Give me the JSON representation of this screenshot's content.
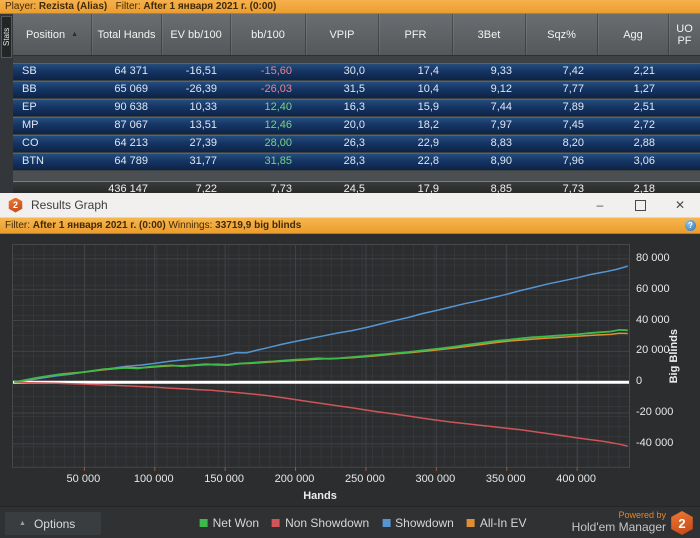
{
  "stats_window": {
    "toolbar": {
      "player_label": "Player:",
      "player_value": "Rezista (Alias)",
      "filter_label": "Filter:",
      "filter_value": "After 1 января 2021 г. (0:00)"
    },
    "side_tab": "Stats",
    "table": {
      "columns": [
        "Position",
        "Total Hands",
        "EV bb/100",
        "bb/100",
        "VPIP",
        "PFR",
        "3Bet",
        "Sqz%",
        "Agg",
        "UO PF"
      ],
      "sort_icon": "▲",
      "rows": [
        {
          "position": "SB",
          "values": [
            "64 371",
            "-16,51",
            "-15,60",
            "30,0",
            "17,4",
            "9,33",
            "7,42",
            "2,21"
          ]
        },
        {
          "position": "BB",
          "values": [
            "65 069",
            "-26,39",
            "-26,03",
            "31,5",
            "10,4",
            "9,12",
            "7,77",
            "1,27"
          ]
        },
        {
          "position": "EP",
          "values": [
            "90 638",
            "10,33",
            "12,40",
            "16,3",
            "15,9",
            "7,44",
            "7,89",
            "2,51"
          ]
        },
        {
          "position": "MP",
          "values": [
            "87 067",
            "13,51",
            "12,46",
            "20,0",
            "18,2",
            "7,97",
            "7,45",
            "2,72"
          ]
        },
        {
          "position": "CO",
          "values": [
            "64 213",
            "27,39",
            "28,00",
            "26,3",
            "22,9",
            "8,83",
            "8,20",
            "2,88"
          ]
        },
        {
          "position": "BTN",
          "values": [
            "64 789",
            "31,77",
            "31,85",
            "28,3",
            "22,8",
            "8,90",
            "7,96",
            "3,06"
          ]
        }
      ],
      "total_values": [
        "436 147",
        "7,22",
        "7,73",
        "24,5",
        "17,9",
        "8,85",
        "7,73",
        "2,18"
      ]
    }
  },
  "graph_window": {
    "icon_label": "2",
    "title": "Results Graph",
    "minimize_glyph": "–",
    "close_glyph": "✕",
    "filterbar": {
      "filter_label": "Filter:",
      "filter_value": "After 1 января 2021 г. (0:00)",
      "winnings_label": "Winnings:",
      "winnings_value": "33719,9 big blinds",
      "info_glyph": "?"
    },
    "options_label": "Options",
    "options_chevron": "▲",
    "powered_by_line1": "Powered by",
    "powered_by_line2": "Hold'em Manager",
    "powered_badge": "2"
  },
  "chart_data": {
    "type": "line",
    "xlabel": "Hands",
    "ylabel": "Big Blinds",
    "x_range": [
      0,
      436147
    ],
    "y_range": [
      -55000,
      89000
    ],
    "grid": true,
    "legend_position": "bottom",
    "zero_line_color": "#ffffff",
    "x_ticks": [
      {
        "v": 50000,
        "label": "50 000"
      },
      {
        "v": 100000,
        "label": "100 000"
      },
      {
        "v": 150000,
        "label": "150 000"
      },
      {
        "v": 200000,
        "label": "200 000"
      },
      {
        "v": 250000,
        "label": "250 000"
      },
      {
        "v": 300000,
        "label": "300 000"
      },
      {
        "v": 350000,
        "label": "350 000"
      },
      {
        "v": 400000,
        "label": "400 000"
      }
    ],
    "y_ticks": [
      {
        "v": 80000,
        "label": "80 000"
      },
      {
        "v": 60000,
        "label": "60 000"
      },
      {
        "v": 40000,
        "label": "40 000"
      },
      {
        "v": 20000,
        "label": "20 000"
      },
      {
        "v": 0,
        "label": "0"
      },
      {
        "v": -20000,
        "label": "-20 000"
      },
      {
        "v": -40000,
        "label": "-40 000"
      }
    ],
    "points_scale": 1000,
    "series": [
      {
        "name": "Net Won",
        "color": "#3dbb4a",
        "points": [
          [
            0,
            0
          ],
          [
            8,
            1.4
          ],
          [
            16,
            2.8
          ],
          [
            24,
            4.0
          ],
          [
            32,
            5.0
          ],
          [
            40,
            5.6
          ],
          [
            48,
            6.3
          ],
          [
            56,
            7.4
          ],
          [
            64,
            8.5
          ],
          [
            72,
            8.9
          ],
          [
            80,
            9.3
          ],
          [
            88,
            8.9
          ],
          [
            96,
            9.9
          ],
          [
            104,
            10.6
          ],
          [
            112,
            10.9
          ],
          [
            120,
            10.3
          ],
          [
            128,
            11.0
          ],
          [
            136,
            11.7
          ],
          [
            144,
            11.3
          ],
          [
            152,
            11.1
          ],
          [
            160,
            12.0
          ],
          [
            168,
            12.5
          ],
          [
            176,
            13.1
          ],
          [
            184,
            13.5
          ],
          [
            192,
            14.1
          ],
          [
            200,
            14.6
          ],
          [
            208,
            15.0
          ],
          [
            216,
            15.5
          ],
          [
            224,
            15.2
          ],
          [
            232,
            15.6
          ],
          [
            240,
            16.2
          ],
          [
            248,
            16.9
          ],
          [
            256,
            17.5
          ],
          [
            264,
            18.2
          ],
          [
            272,
            18.9
          ],
          [
            280,
            19.5
          ],
          [
            288,
            20.4
          ],
          [
            296,
            21.2
          ],
          [
            304,
            22.0
          ],
          [
            312,
            22.9
          ],
          [
            320,
            24.0
          ],
          [
            328,
            25.0
          ],
          [
            336,
            26.0
          ],
          [
            344,
            26.9
          ],
          [
            352,
            27.6
          ],
          [
            360,
            28.4
          ],
          [
            368,
            29.1
          ],
          [
            376,
            29.6
          ],
          [
            384,
            30.1
          ],
          [
            392,
            30.6
          ],
          [
            400,
            31.0
          ],
          [
            408,
            31.8
          ],
          [
            416,
            32.4
          ],
          [
            424,
            32.9
          ],
          [
            430,
            33.9
          ],
          [
            436,
            33.7
          ]
        ]
      },
      {
        "name": "Non Showdown",
        "color": "#d05458",
        "points": [
          [
            0,
            0
          ],
          [
            10,
            -0.3
          ],
          [
            20,
            -0.5
          ],
          [
            30,
            -0.7
          ],
          [
            40,
            -1.0
          ],
          [
            50,
            -1.2
          ],
          [
            60,
            -1.6
          ],
          [
            70,
            -2.0
          ],
          [
            80,
            -2.4
          ],
          [
            90,
            -2.8
          ],
          [
            100,
            -3.2
          ],
          [
            110,
            -3.8
          ],
          [
            120,
            -4.3
          ],
          [
            130,
            -4.8
          ],
          [
            140,
            -5.2
          ],
          [
            150,
            -6.0
          ],
          [
            160,
            -6.8
          ],
          [
            170,
            -7.7
          ],
          [
            180,
            -8.7
          ],
          [
            190,
            -9.9
          ],
          [
            200,
            -11.3
          ],
          [
            210,
            -12.7
          ],
          [
            220,
            -14.0
          ],
          [
            230,
            -15.4
          ],
          [
            240,
            -16.6
          ],
          [
            250,
            -18.0
          ],
          [
            260,
            -19.4
          ],
          [
            270,
            -20.6
          ],
          [
            280,
            -21.9
          ],
          [
            290,
            -23.3
          ],
          [
            300,
            -24.6
          ],
          [
            310,
            -25.8
          ],
          [
            320,
            -26.8
          ],
          [
            330,
            -27.8
          ],
          [
            340,
            -28.8
          ],
          [
            350,
            -29.9
          ],
          [
            360,
            -30.9
          ],
          [
            370,
            -32.1
          ],
          [
            380,
            -33.4
          ],
          [
            390,
            -34.7
          ],
          [
            400,
            -36.1
          ],
          [
            410,
            -37.3
          ],
          [
            420,
            -38.5
          ],
          [
            430,
            -40.2
          ],
          [
            436,
            -41.5
          ]
        ]
      },
      {
        "name": "Showdown",
        "color": "#5596d2",
        "points": [
          [
            0,
            0
          ],
          [
            10,
            1.3
          ],
          [
            20,
            2.7
          ],
          [
            30,
            4.1
          ],
          [
            40,
            5.2
          ],
          [
            50,
            6.6
          ],
          [
            60,
            7.9
          ],
          [
            70,
            9.1
          ],
          [
            80,
            10.3
          ],
          [
            90,
            11.1
          ],
          [
            100,
            12.2
          ],
          [
            110,
            13.5
          ],
          [
            120,
            14.5
          ],
          [
            130,
            15.3
          ],
          [
            140,
            16.2
          ],
          [
            150,
            17.5
          ],
          [
            158,
            19.2
          ],
          [
            165,
            19.0
          ],
          [
            172,
            20.6
          ],
          [
            180,
            22.3
          ],
          [
            190,
            24.5
          ],
          [
            200,
            26.5
          ],
          [
            210,
            28.3
          ],
          [
            220,
            30.1
          ],
          [
            230,
            31.9
          ],
          [
            240,
            33.5
          ],
          [
            250,
            35.4
          ],
          [
            260,
            37.7
          ],
          [
            270,
            39.9
          ],
          [
            280,
            42.0
          ],
          [
            290,
            44.5
          ],
          [
            300,
            46.5
          ],
          [
            310,
            48.7
          ],
          [
            320,
            50.9
          ],
          [
            330,
            52.8
          ],
          [
            340,
            54.9
          ],
          [
            350,
            57.0
          ],
          [
            360,
            59.5
          ],
          [
            370,
            61.7
          ],
          [
            380,
            63.9
          ],
          [
            390,
            65.8
          ],
          [
            400,
            67.7
          ],
          [
            410,
            69.9
          ],
          [
            420,
            71.6
          ],
          [
            428,
            73.2
          ],
          [
            436,
            75.3
          ]
        ]
      },
      {
        "name": "All-In EV",
        "color": "#de8f35",
        "points": [
          [
            0,
            0
          ],
          [
            8,
            1.2
          ],
          [
            16,
            2.6
          ],
          [
            24,
            3.9
          ],
          [
            32,
            5.2
          ],
          [
            40,
            5.9
          ],
          [
            48,
            6.5
          ],
          [
            56,
            7.2
          ],
          [
            64,
            8.1
          ],
          [
            72,
            8.7
          ],
          [
            80,
            9.7
          ],
          [
            88,
            9.3
          ],
          [
            96,
            9.6
          ],
          [
            104,
            10.2
          ],
          [
            112,
            10.6
          ],
          [
            120,
            10.8
          ],
          [
            128,
            10.9
          ],
          [
            136,
            11.3
          ],
          [
            144,
            11.6
          ],
          [
            152,
            11.4
          ],
          [
            160,
            12.1
          ],
          [
            168,
            12.2
          ],
          [
            176,
            12.7
          ],
          [
            184,
            13.2
          ],
          [
            192,
            13.7
          ],
          [
            200,
            14.1
          ],
          [
            208,
            14.6
          ],
          [
            216,
            15.0
          ],
          [
            224,
            15.3
          ],
          [
            232,
            15.6
          ],
          [
            240,
            15.9
          ],
          [
            248,
            16.4
          ],
          [
            256,
            17.0
          ],
          [
            264,
            17.7
          ],
          [
            272,
            18.4
          ],
          [
            280,
            19.0
          ],
          [
            288,
            19.8
          ],
          [
            296,
            20.5
          ],
          [
            304,
            21.3
          ],
          [
            312,
            22.1
          ],
          [
            320,
            23.0
          ],
          [
            328,
            24.0
          ],
          [
            336,
            25.0
          ],
          [
            344,
            25.9
          ],
          [
            352,
            26.7
          ],
          [
            360,
            27.3
          ],
          [
            368,
            27.9
          ],
          [
            376,
            28.4
          ],
          [
            384,
            28.9
          ],
          [
            392,
            29.3
          ],
          [
            400,
            29.8
          ],
          [
            408,
            30.3
          ],
          [
            416,
            30.7
          ],
          [
            424,
            31.0
          ],
          [
            430,
            31.7
          ],
          [
            436,
            31.6
          ]
        ]
      }
    ]
  }
}
